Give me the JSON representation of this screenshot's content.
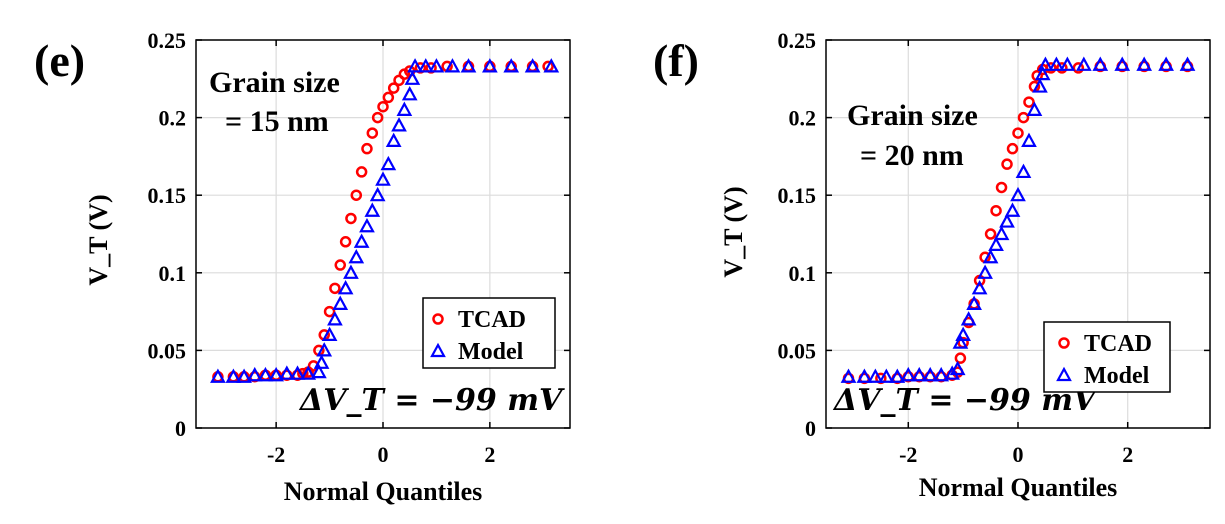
{
  "chart_data": [
    {
      "panel": "(e)",
      "type": "scatter",
      "xlabel": "Normal Quantiles",
      "ylabel": "V_T (V)",
      "xlim": [
        -3.5,
        3.5
      ],
      "ylim": [
        0,
        0.25
      ],
      "xticks": [
        "-2",
        "0",
        "2"
      ],
      "yticks": [
        "0",
        "0.05",
        "0.1",
        "0.15",
        "0.2",
        "0.25"
      ],
      "grid": true,
      "legend_position": "bottom-right",
      "annotations": [
        "Grain size",
        "= 15 nm",
        "ΔV_T = −99 mV"
      ],
      "series": [
        {
          "name": "TCAD",
          "marker": "circle",
          "color": "#ff0000",
          "points": [
            [
              -3.09,
              0.033
            ],
            [
              -2.8,
              0.033
            ],
            [
              -2.6,
              0.033
            ],
            [
              -2.4,
              0.033
            ],
            [
              -2.2,
              0.034
            ],
            [
              -2.0,
              0.034
            ],
            [
              -1.8,
              0.034
            ],
            [
              -1.6,
              0.034
            ],
            [
              -1.5,
              0.035
            ],
            [
              -1.4,
              0.036
            ],
            [
              -1.3,
              0.04
            ],
            [
              -1.2,
              0.05
            ],
            [
              -1.1,
              0.06
            ],
            [
              -1.0,
              0.075
            ],
            [
              -0.9,
              0.09
            ],
            [
              -0.8,
              0.105
            ],
            [
              -0.7,
              0.12
            ],
            [
              -0.6,
              0.135
            ],
            [
              -0.5,
              0.15
            ],
            [
              -0.4,
              0.165
            ],
            [
              -0.3,
              0.18
            ],
            [
              -0.2,
              0.19
            ],
            [
              -0.1,
              0.2
            ],
            [
              0.0,
              0.207
            ],
            [
              0.1,
              0.213
            ],
            [
              0.2,
              0.219
            ],
            [
              0.3,
              0.224
            ],
            [
              0.4,
              0.228
            ],
            [
              0.5,
              0.23
            ],
            [
              0.7,
              0.232
            ],
            [
              0.9,
              0.232
            ],
            [
              1.2,
              0.233
            ],
            [
              1.6,
              0.233
            ],
            [
              2.0,
              0.233
            ],
            [
              2.4,
              0.233
            ],
            [
              2.8,
              0.233
            ],
            [
              3.09,
              0.233
            ]
          ]
        },
        {
          "name": "Model",
          "marker": "triangle",
          "color": "#0000ff",
          "points": [
            [
              -3.09,
              0.033
            ],
            [
              -2.8,
              0.033
            ],
            [
              -2.6,
              0.033
            ],
            [
              -2.4,
              0.034
            ],
            [
              -2.2,
              0.034
            ],
            [
              -2.0,
              0.034
            ],
            [
              -1.8,
              0.035
            ],
            [
              -1.6,
              0.035
            ],
            [
              -1.4,
              0.035
            ],
            [
              -1.2,
              0.036
            ],
            [
              -1.15,
              0.042
            ],
            [
              -1.1,
              0.05
            ],
            [
              -1.0,
              0.06
            ],
            [
              -0.9,
              0.07
            ],
            [
              -0.8,
              0.08
            ],
            [
              -0.7,
              0.09
            ],
            [
              -0.6,
              0.1
            ],
            [
              -0.5,
              0.11
            ],
            [
              -0.4,
              0.12
            ],
            [
              -0.3,
              0.13
            ],
            [
              -0.2,
              0.14
            ],
            [
              -0.1,
              0.15
            ],
            [
              0.0,
              0.16
            ],
            [
              0.1,
              0.17
            ],
            [
              0.2,
              0.185
            ],
            [
              0.3,
              0.195
            ],
            [
              0.4,
              0.205
            ],
            [
              0.5,
              0.215
            ],
            [
              0.55,
              0.225
            ],
            [
              0.6,
              0.233
            ],
            [
              0.8,
              0.233
            ],
            [
              1.0,
              0.233
            ],
            [
              1.3,
              0.233
            ],
            [
              1.6,
              0.233
            ],
            [
              2.0,
              0.233
            ],
            [
              2.4,
              0.233
            ],
            [
              2.8,
              0.233
            ],
            [
              3.15,
              0.233
            ]
          ]
        }
      ]
    },
    {
      "panel": "(f)",
      "type": "scatter",
      "xlabel": "Normal Quantiles",
      "ylabel": "V_T (V)",
      "xlim": [
        -3.5,
        3.5
      ],
      "ylim": [
        0,
        0.25
      ],
      "xticks": [
        "-2",
        "0",
        "2"
      ],
      "yticks": [
        "0",
        "0.05",
        "0.1",
        "0.15",
        "0.2",
        "0.25"
      ],
      "grid": true,
      "legend_position": "bottom-right",
      "annotations": [
        "Grain size",
        "= 20 nm",
        "ΔV_T = −99 mV"
      ],
      "series": [
        {
          "name": "TCAD",
          "marker": "circle",
          "color": "#ff0000",
          "points": [
            [
              -3.09,
              0.032
            ],
            [
              -2.8,
              0.032
            ],
            [
              -2.5,
              0.032
            ],
            [
              -2.2,
              0.032
            ],
            [
              -2.0,
              0.033
            ],
            [
              -1.8,
              0.033
            ],
            [
              -1.6,
              0.033
            ],
            [
              -1.4,
              0.033
            ],
            [
              -1.2,
              0.034
            ],
            [
              -1.1,
              0.036
            ],
            [
              -1.05,
              0.045
            ],
            [
              -1.0,
              0.055
            ],
            [
              -0.9,
              0.068
            ],
            [
              -0.8,
              0.08
            ],
            [
              -0.7,
              0.095
            ],
            [
              -0.6,
              0.11
            ],
            [
              -0.5,
              0.125
            ],
            [
              -0.4,
              0.14
            ],
            [
              -0.3,
              0.155
            ],
            [
              -0.2,
              0.17
            ],
            [
              -0.1,
              0.18
            ],
            [
              0.0,
              0.19
            ],
            [
              0.1,
              0.2
            ],
            [
              0.2,
              0.21
            ],
            [
              0.3,
              0.22
            ],
            [
              0.35,
              0.227
            ],
            [
              0.45,
              0.231
            ],
            [
              0.6,
              0.232
            ],
            [
              0.8,
              0.232
            ],
            [
              1.1,
              0.232
            ],
            [
              1.5,
              0.233
            ],
            [
              1.9,
              0.233
            ],
            [
              2.3,
              0.233
            ],
            [
              2.7,
              0.233
            ],
            [
              3.09,
              0.233
            ]
          ]
        },
        {
          "name": "Model",
          "marker": "triangle",
          "color": "#0000ff",
          "points": [
            [
              -3.09,
              0.033
            ],
            [
              -2.8,
              0.033
            ],
            [
              -2.6,
              0.033
            ],
            [
              -2.4,
              0.033
            ],
            [
              -2.2,
              0.033
            ],
            [
              -2.0,
              0.034
            ],
            [
              -1.8,
              0.034
            ],
            [
              -1.6,
              0.034
            ],
            [
              -1.4,
              0.034
            ],
            [
              -1.2,
              0.035
            ],
            [
              -1.1,
              0.038
            ],
            [
              -1.05,
              0.055
            ],
            [
              -1.0,
              0.06
            ],
            [
              -0.9,
              0.07
            ],
            [
              -0.8,
              0.08
            ],
            [
              -0.7,
              0.09
            ],
            [
              -0.6,
              0.1
            ],
            [
              -0.5,
              0.11
            ],
            [
              -0.4,
              0.118
            ],
            [
              -0.3,
              0.125
            ],
            [
              -0.2,
              0.133
            ],
            [
              -0.1,
              0.14
            ],
            [
              0.0,
              0.15
            ],
            [
              0.1,
              0.165
            ],
            [
              0.2,
              0.185
            ],
            [
              0.3,
              0.205
            ],
            [
              0.4,
              0.22
            ],
            [
              0.45,
              0.228
            ],
            [
              0.5,
              0.234
            ],
            [
              0.7,
              0.234
            ],
            [
              0.9,
              0.234
            ],
            [
              1.2,
              0.234
            ],
            [
              1.5,
              0.234
            ],
            [
              1.9,
              0.234
            ],
            [
              2.3,
              0.234
            ],
            [
              2.7,
              0.234
            ],
            [
              3.09,
              0.234
            ]
          ]
        }
      ]
    }
  ]
}
